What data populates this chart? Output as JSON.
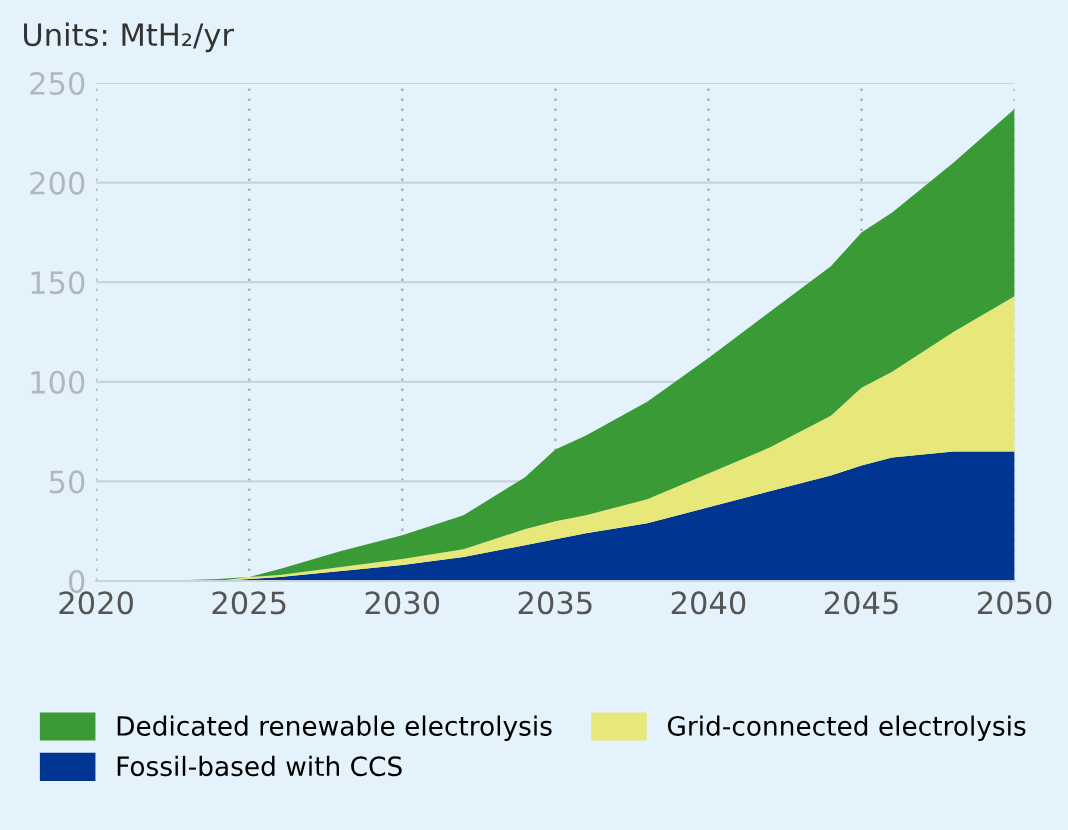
{
  "chart_data": {
    "type": "area",
    "stacked": true,
    "title": "Units: MtH₂/yr",
    "x": [
      2020,
      2022,
      2024,
      2025,
      2026,
      2028,
      2030,
      2032,
      2034,
      2035,
      2036,
      2038,
      2040,
      2042,
      2044,
      2045,
      2046,
      2048,
      2050
    ],
    "series": [
      {
        "name": "Fossil-based with CCS",
        "color": "#003591",
        "values": [
          0,
          0,
          0,
          1,
          2,
          5,
          8,
          12,
          18,
          21,
          24,
          29,
          37,
          45,
          53,
          58,
          62,
          65,
          65
        ]
      },
      {
        "name": "Grid-connected electrolysis",
        "color": "#e8e87a",
        "values": [
          0,
          0,
          0,
          1,
          1,
          2,
          3,
          4,
          8,
          9,
          9,
          12,
          17,
          22,
          30,
          39,
          43,
          60,
          78
        ]
      },
      {
        "name": "Dedicated renewable electrolysis",
        "color": "#3a9a35",
        "values": [
          0,
          0,
          1,
          0,
          3,
          8,
          12,
          17,
          26,
          36,
          40,
          49,
          58,
          68,
          75,
          78,
          80,
          85,
          94
        ]
      }
    ],
    "xlim": [
      2020,
      2050
    ],
    "xticks": [
      2020,
      2025,
      2030,
      2035,
      2040,
      2045,
      2050
    ],
    "ylim": [
      0,
      250
    ],
    "yticks": [
      0,
      50,
      100,
      150,
      200,
      250
    ],
    "grid": true,
    "legend": "bottom"
  }
}
